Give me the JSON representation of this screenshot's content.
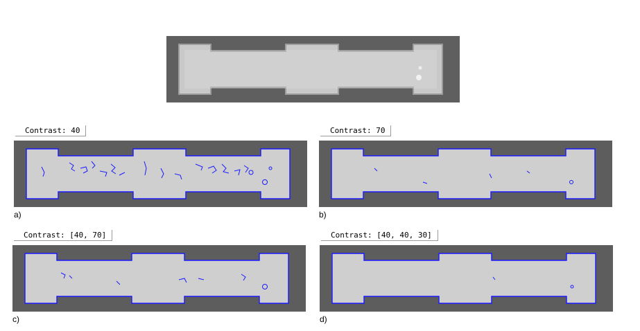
{
  "panels": [
    {
      "id": "a",
      "contrast_label": "Contrast: 40",
      "caption": "a)"
    },
    {
      "id": "b",
      "contrast_label": "Contrast: 70",
      "caption": "b)"
    },
    {
      "id": "c",
      "contrast_label": "Contrast: [40, 70]",
      "caption": "c)"
    },
    {
      "id": "d",
      "contrast_label": "Contrast: [40, 40, 30]",
      "caption": "d)"
    }
  ],
  "colors": {
    "background_gray": "#5d5d5d",
    "specimen_fill": "#d4d4d4",
    "contour_blue": "#1a1aff"
  }
}
